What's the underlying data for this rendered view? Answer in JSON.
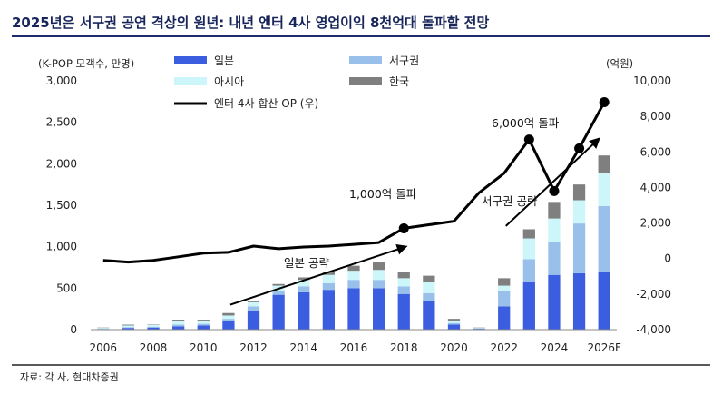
{
  "title": "2025년은 서구권 공연 격상의 원년: 내년 엔터 4사 영업이익 8천억대 돌파할 전망",
  "source": "자료: 각 사, 현대차증권",
  "colors": {
    "title": "#17255a",
    "rule": "#1f2a6b",
    "japan": "#3b5de0",
    "western": "#98c0ea",
    "asia": "#ccf6fa",
    "korea": "#7f7f7f",
    "op_line": "#000000"
  },
  "chart_data": {
    "type": "bar",
    "stacked": true,
    "left_axis_label": "(K-POP 모객수, 만명)",
    "right_axis_label": "(억원)",
    "x": [
      "2006",
      "2007",
      "2008",
      "2009",
      "2010",
      "2011",
      "2012",
      "2013",
      "2014",
      "2015",
      "2016",
      "2017",
      "2018",
      "2019",
      "2020",
      "2021",
      "2022",
      "2023",
      "2024",
      "2025",
      "2026F"
    ],
    "x_tick_labels": [
      "2006",
      "2008",
      "2010",
      "2012",
      "2014",
      "2016",
      "2018",
      "2020",
      "2022",
      "2024",
      "2026F"
    ],
    "ylim": [
      0,
      3000
    ],
    "y_ticks": [
      "0",
      "500",
      "1,000",
      "1,500",
      "2,000",
      "2,500",
      "3,000"
    ],
    "y2lim": [
      -4000,
      10000
    ],
    "y2_ticks": [
      "-4,000",
      "-2,000",
      "0",
      "2,000",
      "4,000",
      "6,000",
      "8,000",
      "10,000"
    ],
    "series": [
      {
        "name": "일본",
        "color_key": "japan",
        "values": [
          5,
          20,
          25,
          40,
          50,
          100,
          230,
          420,
          450,
          480,
          500,
          500,
          430,
          340,
          60,
          10,
          280,
          570,
          660,
          680,
          700
        ]
      },
      {
        "name": "서구권",
        "color_key": "western",
        "values": [
          5,
          10,
          10,
          20,
          20,
          30,
          50,
          50,
          70,
          80,
          100,
          100,
          90,
          100,
          20,
          5,
          190,
          280,
          400,
          600,
          790
        ]
      },
      {
        "name": "아시아",
        "color_key": "asia",
        "values": [
          10,
          20,
          20,
          40,
          40,
          40,
          50,
          60,
          80,
          100,
          110,
          120,
          100,
          140,
          30,
          5,
          60,
          250,
          280,
          280,
          400
        ]
      },
      {
        "name": "한국",
        "color_key": "korea",
        "values": [
          5,
          10,
          5,
          20,
          10,
          30,
          20,
          20,
          30,
          40,
          60,
          90,
          70,
          70,
          20,
          5,
          90,
          110,
          200,
          190,
          210
        ]
      }
    ],
    "line_series": {
      "name": "엔터 4사 합산 OP (우)",
      "color_key": "op_line",
      "values": [
        -100,
        -200,
        -100,
        100,
        300,
        350,
        700,
        550,
        650,
        700,
        800,
        900,
        1700,
        1900,
        2100,
        3700,
        4800,
        6700,
        3800,
        6200,
        8800
      ]
    },
    "annotations": [
      {
        "text": "1,000억 돌파"
      },
      {
        "text": "6,000억 돌파"
      },
      {
        "text": "일본 공략"
      },
      {
        "text": "서구권 공략"
      }
    ],
    "legend": {
      "placement": "top-left",
      "items": [
        {
          "label": "일본",
          "kind": "bar",
          "color_key": "japan"
        },
        {
          "label": "서구권",
          "kind": "bar",
          "color_key": "western"
        },
        {
          "label": "아시아",
          "kind": "bar",
          "color_key": "asia"
        },
        {
          "label": "한국",
          "kind": "bar",
          "color_key": "korea"
        },
        {
          "label": "엔터 4사 합산 OP (우)",
          "kind": "line",
          "color_key": "op_line"
        }
      ]
    },
    "grid": false
  }
}
